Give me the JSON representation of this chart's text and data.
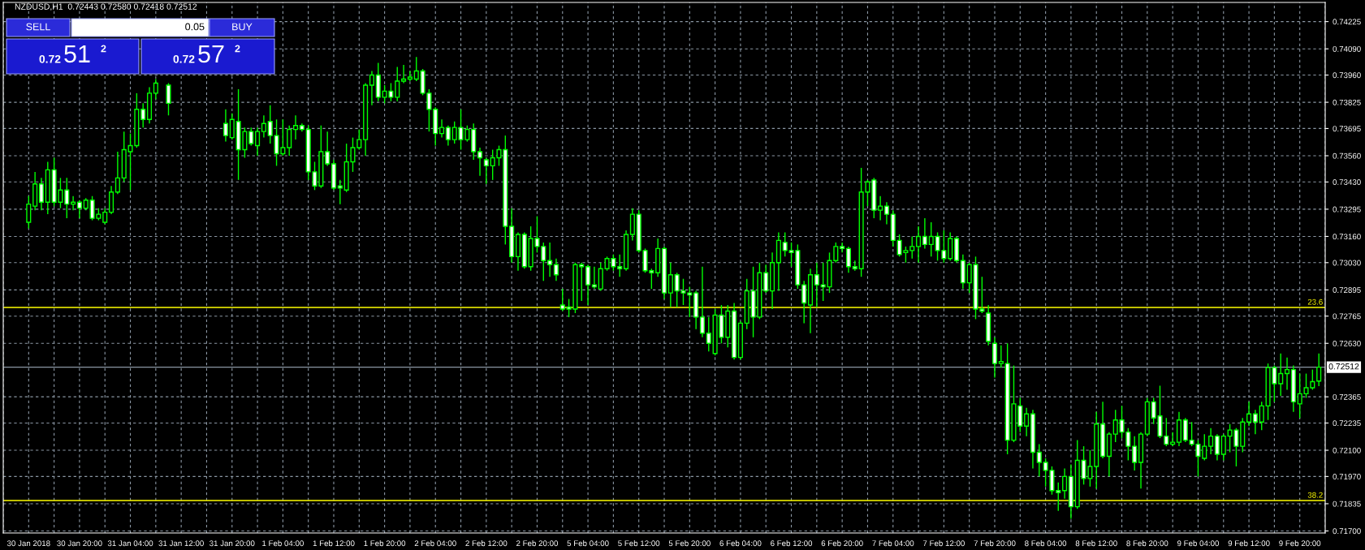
{
  "chart_data": {
    "type": "candlestick",
    "title": "NZDUSD,H1  0.72443 0.72580 0.72418 0.72512",
    "annotations": [
      "SELL",
      "0.05",
      "BUY",
      "0.72",
      "51",
      "2",
      "0.72",
      "57",
      "2",
      {
        "text": "23.6",
        "y": 0.72808
      },
      {
        "text": "38.2",
        "y": 0.71851
      }
    ],
    "categories": [
      "30 Jan 2018",
      null,
      null,
      null,
      null,
      null,
      null,
      null,
      "30 Jan 20:00",
      null,
      null,
      null,
      null,
      null,
      null,
      null,
      "31 Jan 04:00",
      null,
      null,
      null,
      null,
      null,
      null,
      null,
      "31 Jan 12:00",
      null,
      null,
      null,
      null,
      null,
      null,
      null,
      "31 Jan 20:00",
      null,
      null,
      null,
      null,
      null,
      null,
      null,
      "1 Feb 04:00",
      null,
      null,
      null,
      null,
      null,
      null,
      null,
      "1 Feb 12:00",
      null,
      null,
      null,
      null,
      null,
      null,
      null,
      "1 Feb 20:00",
      null,
      null,
      null,
      null,
      null,
      null,
      null,
      "2 Feb 04:00",
      null,
      null,
      null,
      null,
      null,
      null,
      null,
      "2 Feb 12:00",
      null,
      null,
      null,
      null,
      null,
      null,
      null,
      "2 Feb 20:00",
      null,
      null,
      null,
      null,
      null,
      null,
      null,
      "5 Feb 04:00",
      null,
      null,
      null,
      null,
      null,
      null,
      null,
      "5 Feb 12:00",
      null,
      null,
      null,
      null,
      null,
      null,
      null,
      "5 Feb 20:00",
      null,
      null,
      null,
      null,
      null,
      null,
      null,
      "6 Feb 04:00",
      null,
      null,
      null,
      null,
      null,
      null,
      null,
      "6 Feb 12:00",
      null,
      null,
      null,
      null,
      null,
      null,
      null,
      "6 Feb 20:00",
      null,
      null,
      null,
      null,
      null,
      null,
      null,
      "7 Feb 04:00",
      null,
      null,
      null,
      null,
      null,
      null,
      null,
      "7 Feb 12:00",
      null,
      null,
      null,
      null,
      null,
      null,
      null,
      "7 Feb 20:00",
      null,
      null,
      null,
      null,
      null,
      null,
      null,
      "8 Feb 04:00",
      null,
      null,
      null,
      null,
      null,
      null,
      null,
      "8 Feb 12:00",
      null,
      null,
      null,
      null,
      null,
      null,
      null,
      "8 Feb 20:00",
      null,
      null,
      null,
      null,
      null,
      null,
      null,
      "9 Feb 04:00",
      null,
      null,
      null,
      null,
      null,
      null,
      null,
      "9 Feb 12:00",
      null,
      null,
      null,
      null,
      null,
      null,
      null,
      "9 Feb 20:00",
      null,
      null,
      null
    ],
    "ohlc": [
      [
        0.7323,
        0.7336,
        0.732,
        0.7332
      ],
      [
        0.7331,
        0.7348,
        0.7329,
        0.7342
      ],
      [
        0.7342,
        0.7345,
        0.7329,
        0.7333
      ],
      [
        0.7333,
        0.7353,
        0.7327,
        0.7349
      ],
      [
        0.7349,
        0.7355,
        0.7331,
        0.7333
      ],
      [
        0.7333,
        0.7345,
        0.733,
        0.7339
      ],
      [
        0.7339,
        0.7345,
        0.7325,
        0.7332
      ],
      [
        0.7332,
        0.7336,
        0.7329,
        0.7333
      ],
      [
        0.7333,
        0.7334,
        0.7325,
        0.733
      ],
      [
        0.733,
        0.7335,
        0.7329,
        0.7334
      ],
      [
        0.7334,
        0.7336,
        0.7324,
        0.7325
      ],
      [
        0.7325,
        0.733,
        0.7324,
        0.7327
      ],
      [
        0.7323,
        0.733,
        0.7322,
        0.7328
      ],
      [
        0.7328,
        0.7341,
        0.7327,
        0.7338
      ],
      [
        0.7338,
        0.7358,
        0.7337,
        0.7345
      ],
      [
        0.7345,
        0.7368,
        0.7343,
        0.7359
      ],
      [
        0.7358,
        0.7367,
        0.7339,
        0.7361
      ],
      [
        0.7361,
        0.7387,
        0.736,
        0.7379
      ],
      [
        0.7379,
        0.7382,
        0.737,
        0.7374
      ],
      [
        0.7374,
        0.739,
        0.7372,
        0.7387
      ],
      [
        0.7387,
        0.7394,
        0.7384,
        0.7392
      ],
      null,
      [
        0.7391,
        0.7392,
        0.7376,
        0.7382
      ],
      null,
      null,
      null,
      null,
      null,
      null,
      null,
      null,
      [
        0.7372,
        0.7379,
        0.7363,
        0.7366
      ],
      [
        0.7365,
        0.7377,
        0.7364,
        0.7374
      ],
      [
        0.7373,
        0.7389,
        0.7344,
        0.7359
      ],
      [
        0.7359,
        0.737,
        0.7355,
        0.7368
      ],
      [
        0.7368,
        0.737,
        0.7361,
        0.7362
      ],
      [
        0.7361,
        0.737,
        0.7356,
        0.7368
      ],
      [
        0.7368,
        0.7376,
        0.7365,
        0.7372
      ],
      [
        0.7373,
        0.7381,
        0.7362,
        0.7366
      ],
      [
        0.7366,
        0.7374,
        0.7351,
        0.7357
      ],
      [
        0.7357,
        0.7374,
        0.7356,
        0.736
      ],
      [
        0.736,
        0.7371,
        0.7356,
        0.7369
      ],
      [
        0.7369,
        0.7376,
        0.7364,
        0.7371
      ],
      [
        0.7371,
        0.7372,
        0.7368,
        0.7369
      ],
      [
        0.7369,
        0.7371,
        0.7344,
        0.7348
      ],
      [
        0.7348,
        0.7353,
        0.7339,
        0.7341
      ],
      [
        0.7341,
        0.7371,
        0.734,
        0.7358
      ],
      [
        0.7358,
        0.7368,
        0.7351,
        0.7352
      ],
      [
        0.7352,
        0.7354,
        0.7339,
        0.734
      ],
      [
        0.7341,
        0.7344,
        0.7332,
        0.734
      ],
      [
        0.7339,
        0.7362,
        0.7338,
        0.7353
      ],
      [
        0.7353,
        0.7365,
        0.7348,
        0.736
      ],
      [
        0.736,
        0.7369,
        0.7359,
        0.7364
      ],
      [
        0.7364,
        0.7392,
        0.7356,
        0.7391
      ],
      [
        0.7391,
        0.7398,
        0.7381,
        0.7396
      ],
      [
        0.7396,
        0.7402,
        0.7383,
        0.7385
      ],
      [
        0.7385,
        0.7391,
        0.7382,
        0.7388
      ],
      [
        0.7388,
        0.7392,
        0.7383,
        0.7385
      ],
      [
        0.7385,
        0.74,
        0.7383,
        0.7393
      ],
      [
        0.7393,
        0.7401,
        0.7392,
        0.7394
      ],
      [
        0.7394,
        0.7398,
        0.7393,
        0.7395
      ],
      [
        0.7394,
        0.7405,
        0.7393,
        0.7398
      ],
      [
        0.7398,
        0.7399,
        0.7386,
        0.7387
      ],
      [
        0.7387,
        0.7389,
        0.7368,
        0.7379
      ],
      [
        0.7379,
        0.738,
        0.7361,
        0.7367
      ],
      [
        0.7367,
        0.7374,
        0.7365,
        0.737
      ],
      [
        0.737,
        0.7371,
        0.7361,
        0.7364
      ],
      [
        0.7364,
        0.7373,
        0.7362,
        0.737
      ],
      [
        0.737,
        0.7379,
        0.7359,
        0.7364
      ],
      [
        0.7364,
        0.7371,
        0.7363,
        0.7369
      ],
      [
        0.7369,
        0.7372,
        0.7354,
        0.7358
      ],
      [
        0.7358,
        0.736,
        0.7346,
        0.7355
      ],
      [
        0.7354,
        0.7355,
        0.7342,
        0.7351
      ],
      [
        0.7351,
        0.7359,
        0.7344,
        0.7355
      ],
      [
        0.7355,
        0.7361,
        0.7351,
        0.7359
      ],
      [
        0.7359,
        0.7366,
        0.7312,
        0.7321
      ],
      [
        0.7321,
        0.733,
        0.7303,
        0.7306
      ],
      [
        0.7306,
        0.7318,
        0.7299,
        0.7317
      ],
      [
        0.7317,
        0.7318,
        0.73,
        0.7301
      ],
      [
        0.7301,
        0.7321,
        0.7299,
        0.7315
      ],
      [
        0.7315,
        0.7326,
        0.7308,
        0.7311
      ],
      [
        0.7311,
        0.7313,
        0.7294,
        0.7304
      ],
      [
        0.7304,
        0.7313,
        0.7296,
        0.7302
      ],
      [
        0.7302,
        0.7305,
        0.7294,
        0.7297
      ],
      [
        0.7282,
        0.729,
        0.7279,
        0.728
      ],
      [
        0.7281,
        0.7285,
        0.7276,
        0.728
      ],
      [
        0.728,
        0.7303,
        0.7278,
        0.7302
      ],
      [
        0.7302,
        0.7303,
        0.7284,
        0.7301
      ],
      [
        0.7301,
        0.7302,
        0.7282,
        0.7292
      ],
      [
        0.7292,
        0.7301,
        0.729,
        0.7291
      ],
      [
        0.729,
        0.7303,
        0.7289,
        0.73
      ],
      [
        0.73,
        0.7306,
        0.7299,
        0.7305
      ],
      [
        0.7305,
        0.7307,
        0.7299,
        0.7301
      ],
      [
        0.7301,
        0.7307,
        0.7296,
        0.73
      ],
      [
        0.73,
        0.7319,
        0.7299,
        0.7317
      ],
      [
        0.7317,
        0.733,
        0.7314,
        0.7327
      ],
      [
        0.7327,
        0.7329,
        0.7308,
        0.7309
      ],
      [
        0.7309,
        0.731,
        0.7298,
        0.7299
      ],
      [
        0.7299,
        0.73,
        0.729,
        0.7298
      ],
      [
        0.7298,
        0.7315,
        0.7296,
        0.731
      ],
      [
        0.731,
        0.7311,
        0.7285,
        0.7288
      ],
      [
        0.7288,
        0.7303,
        0.7281,
        0.7297
      ],
      [
        0.7297,
        0.7298,
        0.7281,
        0.7289
      ],
      [
        0.7289,
        0.7295,
        0.7282,
        0.7288
      ],
      [
        0.7288,
        0.7291,
        0.7276,
        0.7287
      ],
      [
        0.7288,
        0.7289,
        0.727,
        0.7276
      ],
      [
        0.7276,
        0.7301,
        0.7266,
        0.7268
      ],
      [
        0.7268,
        0.7276,
        0.7259,
        0.7263
      ],
      [
        0.7258,
        0.728,
        0.7257,
        0.7277
      ],
      [
        0.7277,
        0.7282,
        0.7263,
        0.7266
      ],
      [
        0.7266,
        0.7282,
        0.7261,
        0.7279
      ],
      [
        0.7279,
        0.7283,
        0.7255,
        0.7256
      ],
      [
        0.7256,
        0.7274,
        0.7255,
        0.7273
      ],
      [
        0.7273,
        0.7295,
        0.727,
        0.7289
      ],
      [
        0.7289,
        0.7301,
        0.7266,
        0.7276
      ],
      [
        0.7276,
        0.7303,
        0.7275,
        0.7298
      ],
      [
        0.7298,
        0.7302,
        0.7288,
        0.7289
      ],
      [
        0.7289,
        0.7308,
        0.728,
        0.7303
      ],
      [
        0.7303,
        0.7318,
        0.7289,
        0.7314
      ],
      [
        0.7313,
        0.7318,
        0.7306,
        0.7309
      ],
      [
        0.7309,
        0.7313,
        0.7301,
        0.7308
      ],
      [
        0.7309,
        0.7312,
        0.729,
        0.7292
      ],
      [
        0.7292,
        0.7294,
        0.7273,
        0.7283
      ],
      [
        0.7282,
        0.73,
        0.7268,
        0.7297
      ],
      [
        0.7297,
        0.7303,
        0.7281,
        0.7292
      ],
      [
        0.7292,
        0.7303,
        0.7284,
        0.7291
      ],
      [
        0.7291,
        0.7308,
        0.7288,
        0.7304
      ],
      [
        0.7304,
        0.7313,
        0.7303,
        0.7311
      ],
      [
        0.7311,
        0.7313,
        0.7308,
        0.731
      ],
      [
        0.731,
        0.7311,
        0.7298,
        0.7301
      ],
      [
        0.7301,
        0.7304,
        0.7299,
        0.73
      ],
      [
        0.73,
        0.735,
        0.7296,
        0.7338
      ],
      [
        0.7338,
        0.7344,
        0.7331,
        0.7343
      ],
      [
        0.7344,
        0.7345,
        0.7325,
        0.7329
      ],
      [
        0.7329,
        0.7336,
        0.7324,
        0.7331
      ],
      [
        0.7331,
        0.7333,
        0.7322,
        0.7327
      ],
      [
        0.7327,
        0.7329,
        0.7311,
        0.7314
      ],
      [
        0.7314,
        0.7317,
        0.7306,
        0.7307
      ],
      [
        0.7308,
        0.7311,
        0.7303,
        0.7309
      ],
      [
        0.7309,
        0.7316,
        0.7305,
        0.7311
      ],
      [
        0.7311,
        0.7321,
        0.7303,
        0.7316
      ],
      [
        0.7316,
        0.7325,
        0.731,
        0.7312
      ],
      [
        0.7312,
        0.7323,
        0.7306,
        0.7316
      ],
      [
        0.7316,
        0.7318,
        0.7304,
        0.7309
      ],
      [
        0.7309,
        0.7319,
        0.7303,
        0.7305
      ],
      [
        0.7305,
        0.7318,
        0.7304,
        0.7315
      ],
      [
        0.7315,
        0.7316,
        0.7303,
        0.7304
      ],
      [
        0.7304,
        0.7307,
        0.729,
        0.7293
      ],
      [
        0.7293,
        0.7303,
        0.7288,
        0.7302
      ],
      [
        0.7302,
        0.7306,
        0.7275,
        0.728
      ],
      [
        0.728,
        0.7296,
        0.7278,
        0.7279
      ],
      [
        0.7278,
        0.7282,
        0.7262,
        0.7264
      ],
      [
        0.7263,
        0.7266,
        0.7246,
        0.7253
      ],
      [
        0.7253,
        0.7262,
        0.7251,
        0.7254
      ],
      [
        0.7253,
        0.7263,
        0.7208,
        0.7215
      ],
      [
        0.7215,
        0.7252,
        0.7214,
        0.7233
      ],
      [
        0.7232,
        0.7236,
        0.7219,
        0.7222
      ],
      [
        0.7222,
        0.7231,
        0.7217,
        0.7228
      ],
      [
        0.7228,
        0.723,
        0.7201,
        0.7209
      ],
      [
        0.7209,
        0.7213,
        0.7197,
        0.7204
      ],
      [
        0.7204,
        0.7206,
        0.7192,
        0.72
      ],
      [
        0.72,
        0.7202,
        0.7188,
        0.719
      ],
      [
        0.719,
        0.7194,
        0.718,
        0.7189
      ],
      [
        0.719,
        0.7201,
        0.7186,
        0.7197
      ],
      [
        0.7197,
        0.7203,
        0.7176,
        0.7182
      ],
      [
        0.7182,
        0.7215,
        0.7181,
        0.7205
      ],
      [
        0.7205,
        0.7212,
        0.7193,
        0.7196
      ],
      [
        0.7196,
        0.721,
        0.7192,
        0.7202
      ],
      [
        0.7202,
        0.7229,
        0.7191,
        0.7223
      ],
      [
        0.7223,
        0.7234,
        0.7206,
        0.7207
      ],
      [
        0.7207,
        0.7219,
        0.7197,
        0.7218
      ],
      [
        0.7218,
        0.723,
        0.7214,
        0.7225
      ],
      [
        0.7225,
        0.7232,
        0.7216,
        0.7219
      ],
      [
        0.7219,
        0.7221,
        0.7205,
        0.7212
      ],
      [
        0.7212,
        0.7217,
        0.72,
        0.7204
      ],
      [
        0.7204,
        0.7219,
        0.7191,
        0.7218
      ],
      [
        0.7218,
        0.7236,
        0.7217,
        0.7234
      ],
      [
        0.7234,
        0.7236,
        0.7223,
        0.7226
      ],
      [
        0.7227,
        0.7242,
        0.7216,
        0.7217
      ],
      [
        0.7217,
        0.7226,
        0.7212,
        0.7213
      ],
      [
        0.7213,
        0.7219,
        0.7212,
        0.7214
      ],
      [
        0.7214,
        0.7229,
        0.7212,
        0.7225
      ],
      [
        0.7225,
        0.7226,
        0.7214,
        0.7215
      ],
      [
        0.7215,
        0.7224,
        0.7212,
        0.7213
      ],
      [
        0.7213,
        0.7215,
        0.7197,
        0.7207
      ],
      [
        0.7206,
        0.7218,
        0.7205,
        0.7212
      ],
      [
        0.7212,
        0.7221,
        0.7208,
        0.7217
      ],
      [
        0.7217,
        0.7218,
        0.7205,
        0.7208
      ],
      [
        0.7208,
        0.7218,
        0.7205,
        0.7217
      ],
      [
        0.7217,
        0.7223,
        0.7209,
        0.722
      ],
      [
        0.722,
        0.7221,
        0.7202,
        0.7212
      ],
      [
        0.7212,
        0.7226,
        0.7209,
        0.7224
      ],
      [
        0.7224,
        0.7234,
        0.7222,
        0.7228
      ],
      [
        0.7228,
        0.723,
        0.7218,
        0.7224
      ],
      [
        0.7224,
        0.7234,
        0.722,
        0.7232
      ],
      [
        0.7232,
        0.7253,
        0.7225,
        0.7251
      ],
      [
        0.7251,
        0.7252,
        0.7234,
        0.7243
      ],
      [
        0.7243,
        0.7258,
        0.7237,
        0.7248
      ],
      [
        0.7248,
        0.7256,
        0.724,
        0.725
      ],
      [
        0.725,
        0.7252,
        0.7229,
        0.7234
      ],
      [
        0.7233,
        0.7248,
        0.7226,
        0.7238
      ],
      [
        0.7238,
        0.7248,
        0.7236,
        0.7241
      ],
      [
        0.7241,
        0.725,
        0.724,
        0.7244
      ],
      [
        0.72443,
        0.7258,
        0.72418,
        0.72512
      ]
    ],
    "ylim": [
      0.7169,
      0.7432
    ],
    "yticks": [
      0.74225,
      {
        "value": 0.7409,
        "label": "0.74090"
      },
      {
        "value": 0.7396,
        "label": "0.73960"
      },
      0.73825,
      0.73695,
      {
        "value": 0.7356,
        "label": "0.73560"
      },
      {
        "value": 0.7343,
        "label": "0.73430"
      },
      0.73295,
      {
        "value": 0.7316,
        "label": "0.73160"
      },
      {
        "value": 0.7303,
        "label": "0.73030"
      },
      0.72895,
      0.72765,
      {
        "value": 0.7263,
        "label": "0.72630"
      },
      0.72365,
      0.72235,
      {
        "value": 0.721,
        "label": "0.72100"
      },
      {
        "value": 0.7197,
        "label": "0.71970"
      },
      0.71835,
      {
        "value": 0.717,
        "label": "0.71700"
      }
    ],
    "ref_lines": [
      {
        "axis": "y",
        "value": 0.72808,
        "color": "#ffff00"
      },
      {
        "axis": "y",
        "value": 0.71851,
        "color": "#ffff00"
      },
      {
        "axis": "y",
        "value": 0.72512,
        "label": "0.72512",
        "color": "#8a96a3"
      }
    ],
    "grid": true
  }
}
